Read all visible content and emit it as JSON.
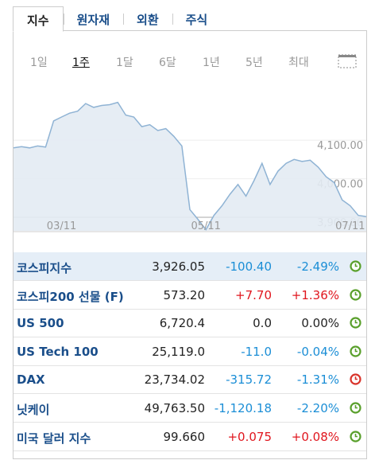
{
  "tabs": [
    "지수",
    "원자재",
    "외환",
    "주식"
  ],
  "periods": [
    "1일",
    "1주",
    "1달",
    "6달",
    "1년",
    "5년",
    "최대"
  ],
  "chart_data": {
    "type": "line",
    "categories": [
      null,
      null,
      null,
      null,
      null,
      null,
      "03/11",
      null,
      null,
      null,
      null,
      null,
      null,
      null,
      null,
      null,
      null,
      null,
      null,
      null,
      null,
      null,
      null,
      null,
      "05/11",
      null,
      null,
      null,
      null,
      null,
      null,
      null,
      null,
      null,
      null,
      null,
      null,
      null,
      null,
      null,
      null,
      null,
      "07/11",
      null,
      null
    ],
    "values": [
      4080,
      4083,
      4080,
      4085,
      4082,
      4150,
      4160,
      4170,
      4175,
      4195,
      4185,
      4190,
      4192,
      4198,
      4165,
      4160,
      4135,
      4140,
      4125,
      4130,
      4110,
      4085,
      3920,
      3895,
      3868,
      3905,
      3930,
      3960,
      3985,
      3955,
      3995,
      4040,
      3985,
      4020,
      4040,
      4050,
      4045,
      4048,
      4030,
      4005,
      3990,
      3945,
      3930,
      3905,
      3902
    ],
    "color": "#8fb3d4",
    "ylim": [
      3865,
      4257
    ],
    "yticks": [
      {
        "value": 3900,
        "label": "3,900.00"
      },
      {
        "value": 4000,
        "label": "4,000.00"
      },
      {
        "value": 4100,
        "label": "4,100.00"
      }
    ],
    "grid": true
  },
  "table": {
    "rows": [
      [
        "코스피지수",
        "3,926.05",
        "-100.40",
        "-2.49%"
      ],
      [
        "코스피200 선물 (F)",
        "573.20",
        "+7.70",
        "+1.36%"
      ],
      [
        "US 500",
        "6,720.4",
        "0.0",
        "0.00%"
      ],
      [
        "US Tech 100",
        "25,119.0",
        "-11.0",
        "-0.04%"
      ],
      [
        "DAX",
        "23,734.02",
        "-315.72",
        "-1.31%"
      ],
      [
        "닛케이",
        "49,763.50",
        "-1,120.18",
        "-2.20%"
      ],
      [
        "미국 달러 지수",
        "99.660",
        "+0.075",
        "+0.08%"
      ]
    ],
    "clock_colors": [
      "#5aa02c",
      "#5aa02c",
      "#5aa02c",
      "#5aa02c",
      "#d9342b",
      "#5aa02c",
      "#5aa02c"
    ]
  }
}
